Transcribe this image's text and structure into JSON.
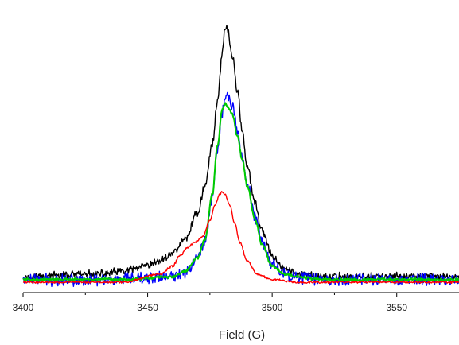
{
  "chart_data": {
    "type": "line",
    "title": "",
    "xlabel": "Field (G)",
    "ylabel": "",
    "xlim": [
      3400,
      3575
    ],
    "ylim": [
      0,
      1.0
    ],
    "xticks": [
      3400,
      3450,
      3500,
      3550
    ],
    "xtick_labels": [
      "3400",
      "3450",
      "3500",
      "3550"
    ],
    "grid": false,
    "legend": "none",
    "series": [
      {
        "color": "#000000",
        "noise": 0.012,
        "x": [
          3400,
          3430,
          3440,
          3450,
          3455,
          3460,
          3465,
          3470,
          3473,
          3476,
          3478,
          3480,
          3481,
          3482,
          3484,
          3486,
          3488,
          3490,
          3493,
          3496,
          3500,
          3505,
          3510,
          3520,
          3540,
          3575
        ],
        "y": [
          0.02,
          0.03,
          0.04,
          0.06,
          0.08,
          0.11,
          0.16,
          0.26,
          0.36,
          0.52,
          0.68,
          0.86,
          0.96,
          0.95,
          0.85,
          0.72,
          0.57,
          0.43,
          0.3,
          0.19,
          0.1,
          0.05,
          0.03,
          0.02,
          0.02,
          0.02
        ]
      },
      {
        "color": "#0000ff",
        "noise": 0.018,
        "x": [
          3400,
          3440,
          3460,
          3465,
          3470,
          3473,
          3476,
          3478,
          3480,
          3481,
          3482,
          3484,
          3486,
          3488,
          3490,
          3493,
          3496,
          3500,
          3505,
          3510,
          3520,
          3575
        ],
        "y": [
          0.01,
          0.01,
          0.02,
          0.04,
          0.09,
          0.16,
          0.32,
          0.5,
          0.64,
          0.69,
          0.7,
          0.66,
          0.57,
          0.47,
          0.37,
          0.25,
          0.15,
          0.07,
          0.03,
          0.02,
          0.01,
          0.01
        ]
      },
      {
        "color": "#00cc00",
        "noise": 0.004,
        "x": [
          3400,
          3440,
          3460,
          3465,
          3470,
          3473,
          3476,
          3478,
          3480,
          3481,
          3482,
          3484,
          3486,
          3488,
          3490,
          3493,
          3496,
          3500,
          3505,
          3510,
          3520,
          3575
        ],
        "y": [
          0.01,
          0.01,
          0.02,
          0.04,
          0.09,
          0.16,
          0.33,
          0.51,
          0.65,
          0.67,
          0.66,
          0.63,
          0.55,
          0.46,
          0.36,
          0.24,
          0.14,
          0.06,
          0.03,
          0.02,
          0.01,
          0.01
        ]
      },
      {
        "color": "#ff0000",
        "noise": 0.003,
        "x": [
          3400,
          3440,
          3455,
          3460,
          3463,
          3466,
          3469,
          3472,
          3475,
          3477,
          3479,
          3480,
          3481,
          3483,
          3485,
          3487,
          3490,
          3494,
          3500,
          3510,
          3530,
          3575
        ],
        "y": [
          0.0,
          0.0,
          0.03,
          0.06,
          0.1,
          0.13,
          0.15,
          0.17,
          0.23,
          0.29,
          0.33,
          0.34,
          0.33,
          0.29,
          0.22,
          0.15,
          0.08,
          0.03,
          0.01,
          0.0,
          0.0,
          0.0
        ]
      }
    ]
  }
}
